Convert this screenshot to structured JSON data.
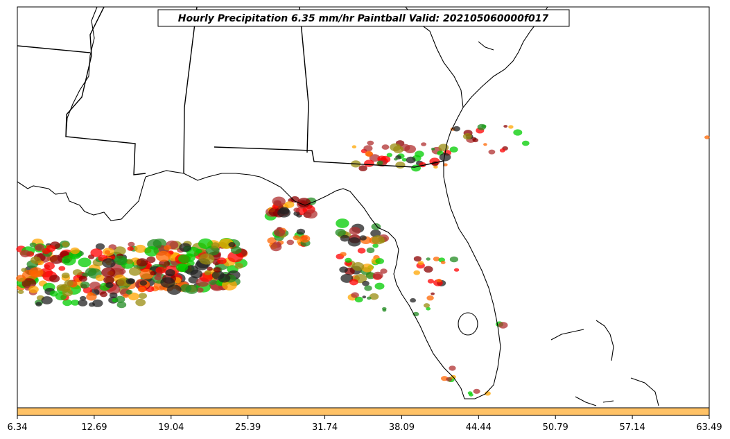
{
  "title": "Hourly Precipitation 6.35 mm/hr Paintball Valid: 202105060000f017",
  "colorbar": {
    "fill_color": "#ffc266",
    "ticks": [
      "6.34",
      "12.69",
      "19.04",
      "25.39",
      "31.74",
      "38.09",
      "44.44",
      "50.79",
      "57.14",
      "63.49"
    ]
  },
  "map_style": {
    "background": "#ffffff",
    "boundary_color": "#000000"
  },
  "member_colors": [
    "#ff0000",
    "#ff6600",
    "#ffa500",
    "#8b0000",
    "#9a8c10",
    "#228b22",
    "#00cc00",
    "#222222",
    "#b03030"
  ]
}
